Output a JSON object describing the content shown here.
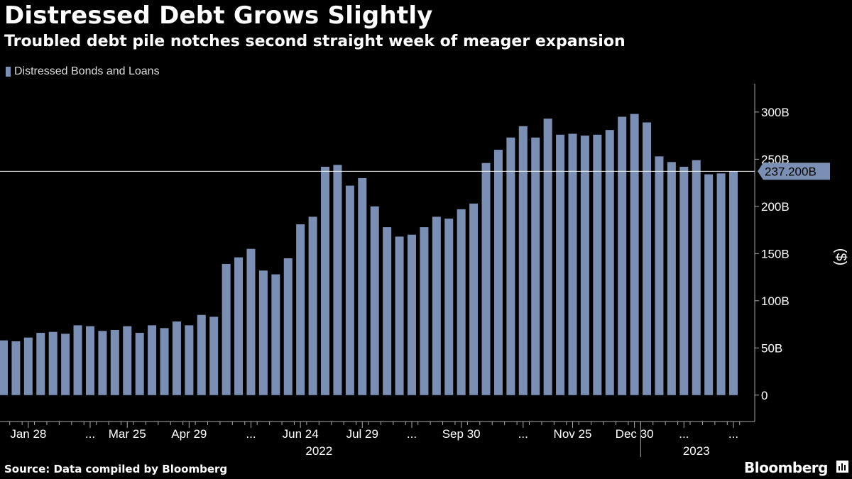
{
  "header": {
    "title": "Distressed Debt Grows Slightly",
    "subtitle": "Troubled debt pile notches second straight week of meager expansion"
  },
  "footer": {
    "source": "Source: Data compiled by Bloomberg",
    "brand": "Bloomberg"
  },
  "colors": {
    "background": "#000000",
    "bar": "#7b8fb5",
    "text": "#ffffff",
    "axis": "#aaaaaa",
    "callout_bg": "#7b8fb5",
    "callout_text": "#000000"
  },
  "icons": {
    "brand": "chart-box-icon"
  },
  "chart_data": {
    "type": "bar",
    "legend": [
      "Distressed Bonds and Loans"
    ],
    "legend_position": "top-left",
    "ylabel": "($)",
    "ylim": [
      -28,
      330
    ],
    "yticks": [
      0,
      50,
      100,
      150,
      200,
      250,
      300
    ],
    "ytick_labels": [
      "0",
      "50B",
      "100B",
      "150B",
      "200B",
      "250B",
      "300B"
    ],
    "y_axis_side": "right",
    "grid": false,
    "series": [
      {
        "name": "Distressed Bonds and Loans",
        "values": [
          58,
          57,
          61,
          66,
          67,
          65,
          74,
          73,
          68,
          69,
          73,
          66,
          74,
          71,
          78,
          74,
          85,
          83,
          139,
          146,
          155,
          132,
          128,
          145,
          181,
          189,
          242,
          244,
          222,
          230,
          200,
          178,
          168,
          170,
          178,
          189,
          187,
          197,
          203,
          246,
          260,
          273,
          285,
          273,
          293,
          276,
          277,
          275,
          276,
          281,
          295,
          298,
          289,
          253,
          247,
          242,
          249,
          234,
          235,
          237.2
        ]
      }
    ],
    "x_tick_labels": [
      {
        "index": 2,
        "label": "Jan 28"
      },
      {
        "index": 7,
        "label": "..."
      },
      {
        "index": 10,
        "label": "Mar 25"
      },
      {
        "index": 15,
        "label": "Apr 29"
      },
      {
        "index": 20,
        "label": "..."
      },
      {
        "index": 24,
        "label": "Jun 24"
      },
      {
        "index": 29,
        "label": "Jul 29"
      },
      {
        "index": 33,
        "label": "..."
      },
      {
        "index": 37,
        "label": "Sep 30"
      },
      {
        "index": 42,
        "label": "..."
      },
      {
        "index": 46,
        "label": "Nov 25"
      },
      {
        "index": 51,
        "label": "Dec 30"
      },
      {
        "index": 55,
        "label": "..."
      },
      {
        "index": 59,
        "label": "..."
      }
    ],
    "year_labels": [
      {
        "label": "2022",
        "center_index": 25.5
      },
      {
        "label": "2023",
        "center_index": 56
      }
    ],
    "year_boundary_index": 51.5,
    "reference_line": {
      "value": 237.2,
      "label": "237.200B"
    }
  }
}
